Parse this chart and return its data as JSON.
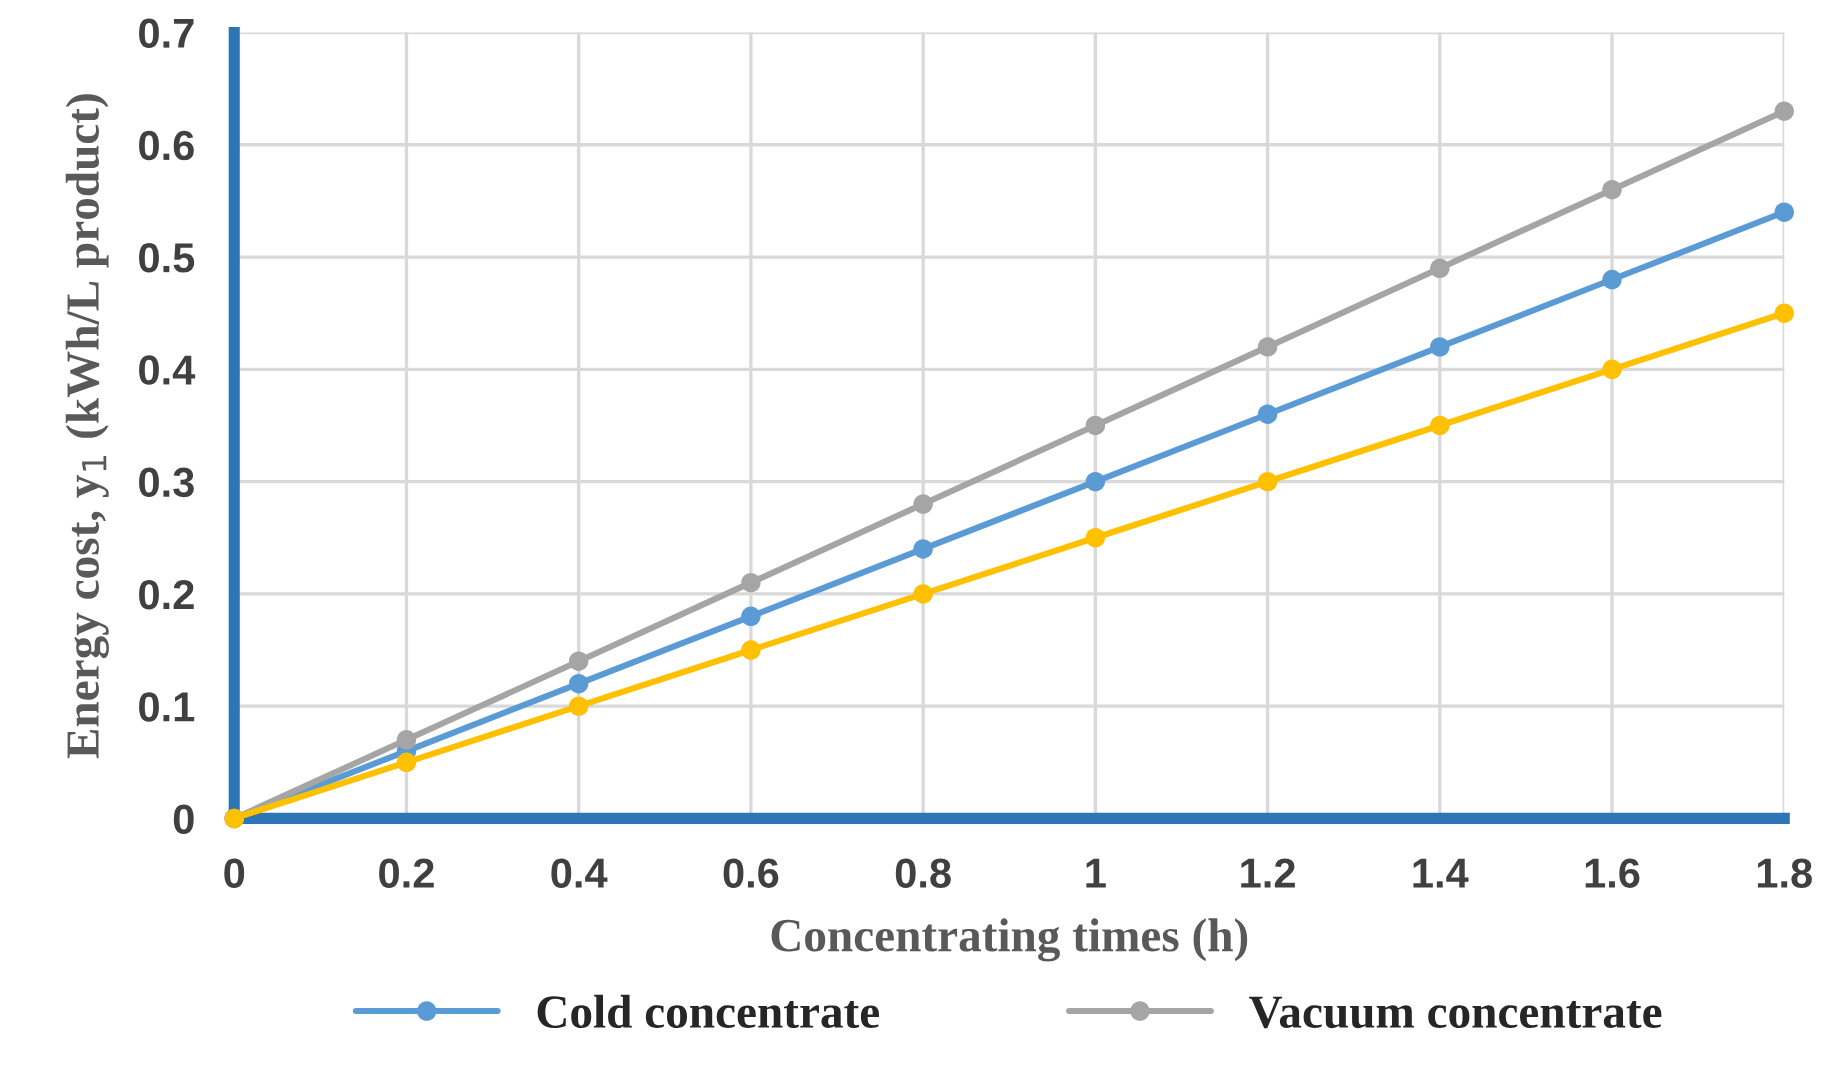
{
  "chart_data": {
    "type": "line",
    "xlabel": "Concentrating times (h)",
    "ylabel": "Energy cost, y$_{1}$ (kWh/L product)",
    "x": [
      0,
      0.2,
      0.4,
      0.6,
      0.8,
      1,
      1.2,
      1.4,
      1.6,
      1.8
    ],
    "series": [
      {
        "name": "Cold concentrate",
        "color": "#5b9bd5",
        "values": [
          0,
          0.06,
          0.12,
          0.18,
          0.24,
          0.3,
          0.36,
          0.42,
          0.48,
          0.54
        ]
      },
      {
        "name": "Vacuum concentrate",
        "color": "#a5a5a5",
        "values": [
          0,
          0.07,
          0.14,
          0.21,
          0.28,
          0.35,
          0.42,
          0.49,
          0.56,
          0.63
        ]
      },
      {
        "color": "#ffc000",
        "values": [
          0,
          0.05,
          0.1,
          0.15,
          0.2,
          0.25,
          0.3,
          0.35,
          0.4,
          0.45
        ]
      }
    ],
    "xlim": [
      0,
      1.8
    ],
    "xticks": [
      0,
      0.2,
      0.4,
      0.6,
      0.8,
      1,
      1.2,
      1.4,
      1.6,
      1.8
    ],
    "ylim": [
      0,
      0.7
    ],
    "yticks": [
      0,
      0.1,
      0.2,
      0.3,
      0.4,
      0.5,
      0.6,
      0.7
    ],
    "grid": true,
    "legend": "bottom",
    "marker": "circle",
    "line_style": "solid"
  }
}
